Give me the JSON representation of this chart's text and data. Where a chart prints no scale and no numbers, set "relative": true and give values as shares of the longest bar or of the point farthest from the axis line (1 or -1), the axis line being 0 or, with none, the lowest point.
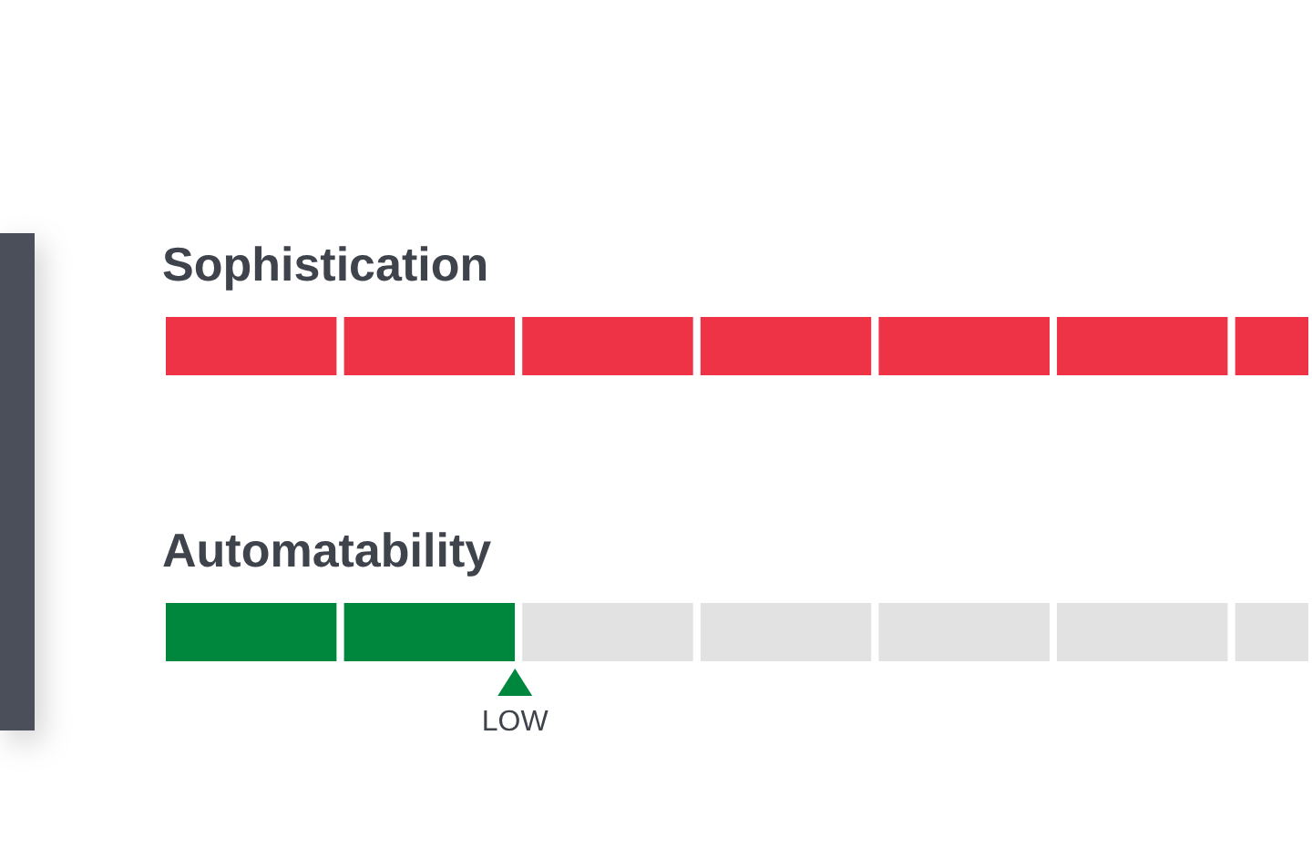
{
  "chart_data": {
    "type": "bar",
    "orientation": "horizontal",
    "stacked": true,
    "relative": true,
    "categories": [
      "Sophistication",
      "Automatability"
    ],
    "series": [
      {
        "colors": [
          "#ef3346",
          "#00873e"
        ],
        "values": [
          0.155,
          0.155
        ]
      },
      {
        "colors": [
          "#ef3346",
          "#00873e"
        ],
        "values": [
          0.155,
          0.155
        ]
      },
      {
        "colors": [
          "#ef3346",
          "#e2e2e2"
        ],
        "values": [
          0.155,
          0.155
        ]
      },
      {
        "colors": [
          "#ef3346",
          "#e2e2e2"
        ],
        "values": [
          0.155,
          0.155
        ]
      },
      {
        "colors": [
          "#ef3346",
          "#e2e2e2"
        ],
        "values": [
          0.155,
          0.155
        ]
      },
      {
        "colors": [
          "#ef3346",
          "#e2e2e2"
        ],
        "values": [
          0.155,
          0.155
        ]
      },
      {
        "colors": [
          "#ef3346",
          "#e2e2e2"
        ],
        "values": [
          0.07,
          0.07
        ]
      }
    ],
    "annotations": [
      {
        "text": "LOW",
        "x": 0.31,
        "y": "Automatability"
      }
    ]
  }
}
